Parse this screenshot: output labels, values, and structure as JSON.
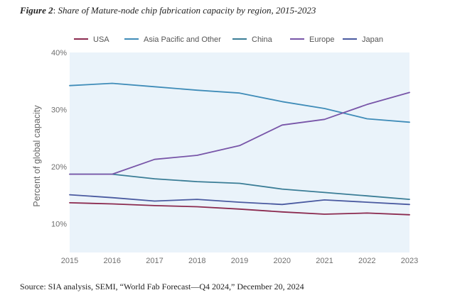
{
  "figure": {
    "label": "Figure 2",
    "title": "Share of Mature-node chip fabrication capacity by region, 2015-2023",
    "source": "Source: SIA analysis, SEMI, “World Fab Forecast—Q4 2024,” December 20, 2024"
  },
  "chart_data": {
    "type": "line",
    "x": [
      "2015",
      "2016",
      "2017",
      "2018",
      "2019",
      "2020",
      "2021",
      "2022",
      "2023"
    ],
    "ylabel": "Percent of global capacity",
    "xlabel": "",
    "ylim": [
      5,
      40
    ],
    "yticks": [
      "40%",
      "30%",
      "20%",
      "10%"
    ],
    "ytick_values": [
      40,
      30,
      20,
      10
    ],
    "grid": false,
    "legend_position": "top",
    "plot_background": "#eaf3fa",
    "series": [
      {
        "name": "USA",
        "color": "#8b2a4f",
        "values": [
          13.7,
          13.5,
          13.2,
          13.0,
          12.6,
          12.1,
          11.7,
          11.9,
          11.6
        ]
      },
      {
        "name": "Asia Pacific and Other",
        "color": "#3f8cb8",
        "values": [
          34.2,
          34.6,
          34.0,
          33.4,
          32.9,
          31.4,
          30.2,
          28.4,
          27.8
        ]
      },
      {
        "name": "China",
        "color": "#3a7d96",
        "values": [
          18.7,
          18.7,
          17.9,
          17.4,
          17.1,
          16.1,
          15.5,
          14.9,
          14.3
        ]
      },
      {
        "name": "Europe",
        "color": "#7855a8",
        "values": [
          18.7,
          18.7,
          21.3,
          22.0,
          23.7,
          27.3,
          28.3,
          30.9,
          33.0
        ]
      },
      {
        "name": "Japan",
        "color": "#4a5aa0",
        "values": [
          15.1,
          14.6,
          14.0,
          14.3,
          13.8,
          13.4,
          14.2,
          13.8,
          13.4
        ]
      }
    ]
  }
}
